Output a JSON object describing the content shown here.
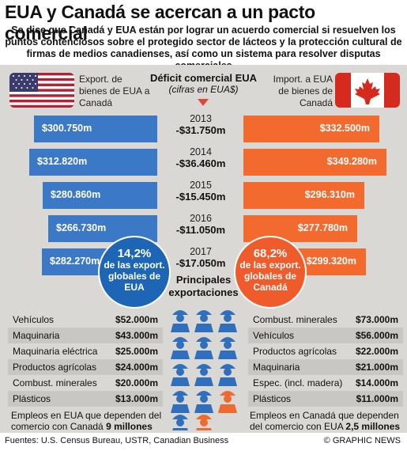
{
  "title": "EUA y Canadá se acercan a un pacto comercial",
  "subtitle": "Se dice que Canadá y EUA están por lograr un acuerdo comercial si resuelven los puntos contenciosos sobre el protegido sector de lácteos y la protección cultural de firmas de medios canadienses, así como un sistema para resolver disputas comerciales",
  "header": {
    "us_label": "Export. de bienes de EUA a Canadá",
    "deficit_title": "Déficit comercial EUA",
    "deficit_sub": "(cifras en EUA$)",
    "ca_label": "Import. a EUA de bienes de Canadá"
  },
  "colors": {
    "us": "#3b79c6",
    "ca": "#f26a2e",
    "deficit_arrow": "#e0473c"
  },
  "chart_data": {
    "type": "bar",
    "categories": [
      "2013",
      "2014",
      "2015",
      "2016",
      "2017"
    ],
    "series": [
      {
        "name": "Export. de bienes de EUA a Canadá",
        "values": [
          300750,
          312820,
          280860,
          266730,
          282270
        ],
        "labels": [
          "$300.750m",
          "$312.820m",
          "$280.860m",
          "$266.730m",
          "$282.270m"
        ]
      },
      {
        "name": "Import. a EUA de bienes de Canadá",
        "values": [
          332500,
          349280,
          296310,
          277780,
          299320
        ],
        "labels": [
          "$332.500m",
          "$349.280m",
          "$296.310m",
          "$277.780m",
          "$299.320m"
        ]
      },
      {
        "name": "Déficit comercial EUA",
        "values": [
          -31750,
          -36460,
          -15450,
          -11050,
          -17050
        ],
        "labels": [
          "-$31.750m",
          "-$36.460m",
          "-$15.450m",
          "-$11.050m",
          "-$17.050m"
        ]
      }
    ],
    "unit": "millones EUA$"
  },
  "circles": {
    "us": {
      "pct": "14,2%",
      "text": "de las export. globales de EUA"
    },
    "ca": {
      "pct": "68,2%",
      "text": "de las export. globales de Canadá"
    }
  },
  "exports_title": "Principales exportaciones",
  "us_exports": [
    {
      "label": "Vehículos",
      "value": "$52.000m"
    },
    {
      "label": "Maquinaria",
      "value": "$43.000m"
    },
    {
      "label": "Maquinaria eléctrica",
      "value": "$25.000m"
    },
    {
      "label": "Productos agrícolas",
      "value": "$24.000m"
    },
    {
      "label": "Combust. minerales",
      "value": "$20.000m"
    },
    {
      "label": "Plásticos",
      "value": "$13.000m"
    }
  ],
  "ca_exports": [
    {
      "label": "Combust. minerales",
      "value": "$73.000m"
    },
    {
      "label": "Vehículos",
      "value": "$56.000m"
    },
    {
      "label": "Productos agrícolas",
      "value": "$22.000m"
    },
    {
      "label": "Maquinaria",
      "value": "$21.000m"
    },
    {
      "label": "Espec. (incl. madera)",
      "value": "$14.000m"
    },
    {
      "label": "Plásticos",
      "value": "$11.000m"
    }
  ],
  "jobs": {
    "us_text": "Empleos en EUA que dependen del comercio con Canadá",
    "us_value": "9 millones",
    "ca_text": "Empleos en Canadá que dependen del comercio con EUA",
    "ca_value": "2,5 millones"
  },
  "footer": {
    "sources": "Fuentes: U.S. Census Bureau, USTR, Canadian Business",
    "credit": "© GRAPHIC NEWS"
  }
}
